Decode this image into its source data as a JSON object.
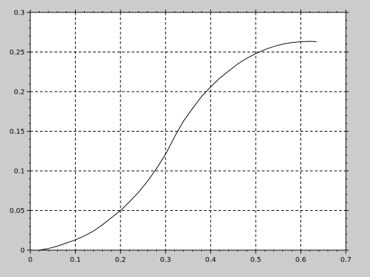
{
  "colors": {
    "figure_background": "#cccccc",
    "axes_background": "#ffffff",
    "axis": "#000000",
    "grid": "#000000",
    "curve": "#000000"
  },
  "chart_data": {
    "type": "line",
    "title": "",
    "xlabel": "",
    "ylabel": "",
    "xlim": [
      0,
      0.7
    ],
    "ylim": [
      0,
      0.3
    ],
    "grid": true,
    "grid_style": "dashed",
    "x_ticks": [
      0,
      0.1,
      0.2,
      0.3,
      0.4,
      0.5,
      0.6,
      0.7
    ],
    "x_tick_labels": [
      "0",
      "0.1",
      "0.2",
      "0.3",
      "0.4",
      "0.5",
      "0.6",
      "0.7"
    ],
    "y_ticks": [
      0,
      0.05,
      0.1,
      0.15,
      0.2,
      0.25,
      0.3
    ],
    "y_tick_labels": [
      "0",
      "0.05",
      "0.1",
      "0.15",
      "0.2",
      "0.25",
      "0.3"
    ],
    "series": [
      {
        "x": [
          0.02,
          0.04,
          0.06,
          0.08,
          0.1,
          0.12,
          0.14,
          0.16,
          0.18,
          0.2,
          0.22,
          0.24,
          0.26,
          0.28,
          0.3,
          0.32,
          0.34,
          0.36,
          0.38,
          0.4,
          0.42,
          0.44,
          0.46,
          0.48,
          0.5,
          0.52,
          0.54,
          0.56,
          0.58,
          0.6,
          0.62,
          0.635
        ],
        "y": [
          0.0,
          0.002,
          0.005,
          0.009,
          0.013,
          0.018,
          0.024,
          0.032,
          0.041,
          0.05,
          0.061,
          0.073,
          0.087,
          0.103,
          0.121,
          0.143,
          0.163,
          0.179,
          0.194,
          0.206,
          0.217,
          0.226,
          0.235,
          0.242,
          0.248,
          0.253,
          0.257,
          0.26,
          0.262,
          0.263,
          0.2635,
          0.263
        ]
      }
    ]
  }
}
